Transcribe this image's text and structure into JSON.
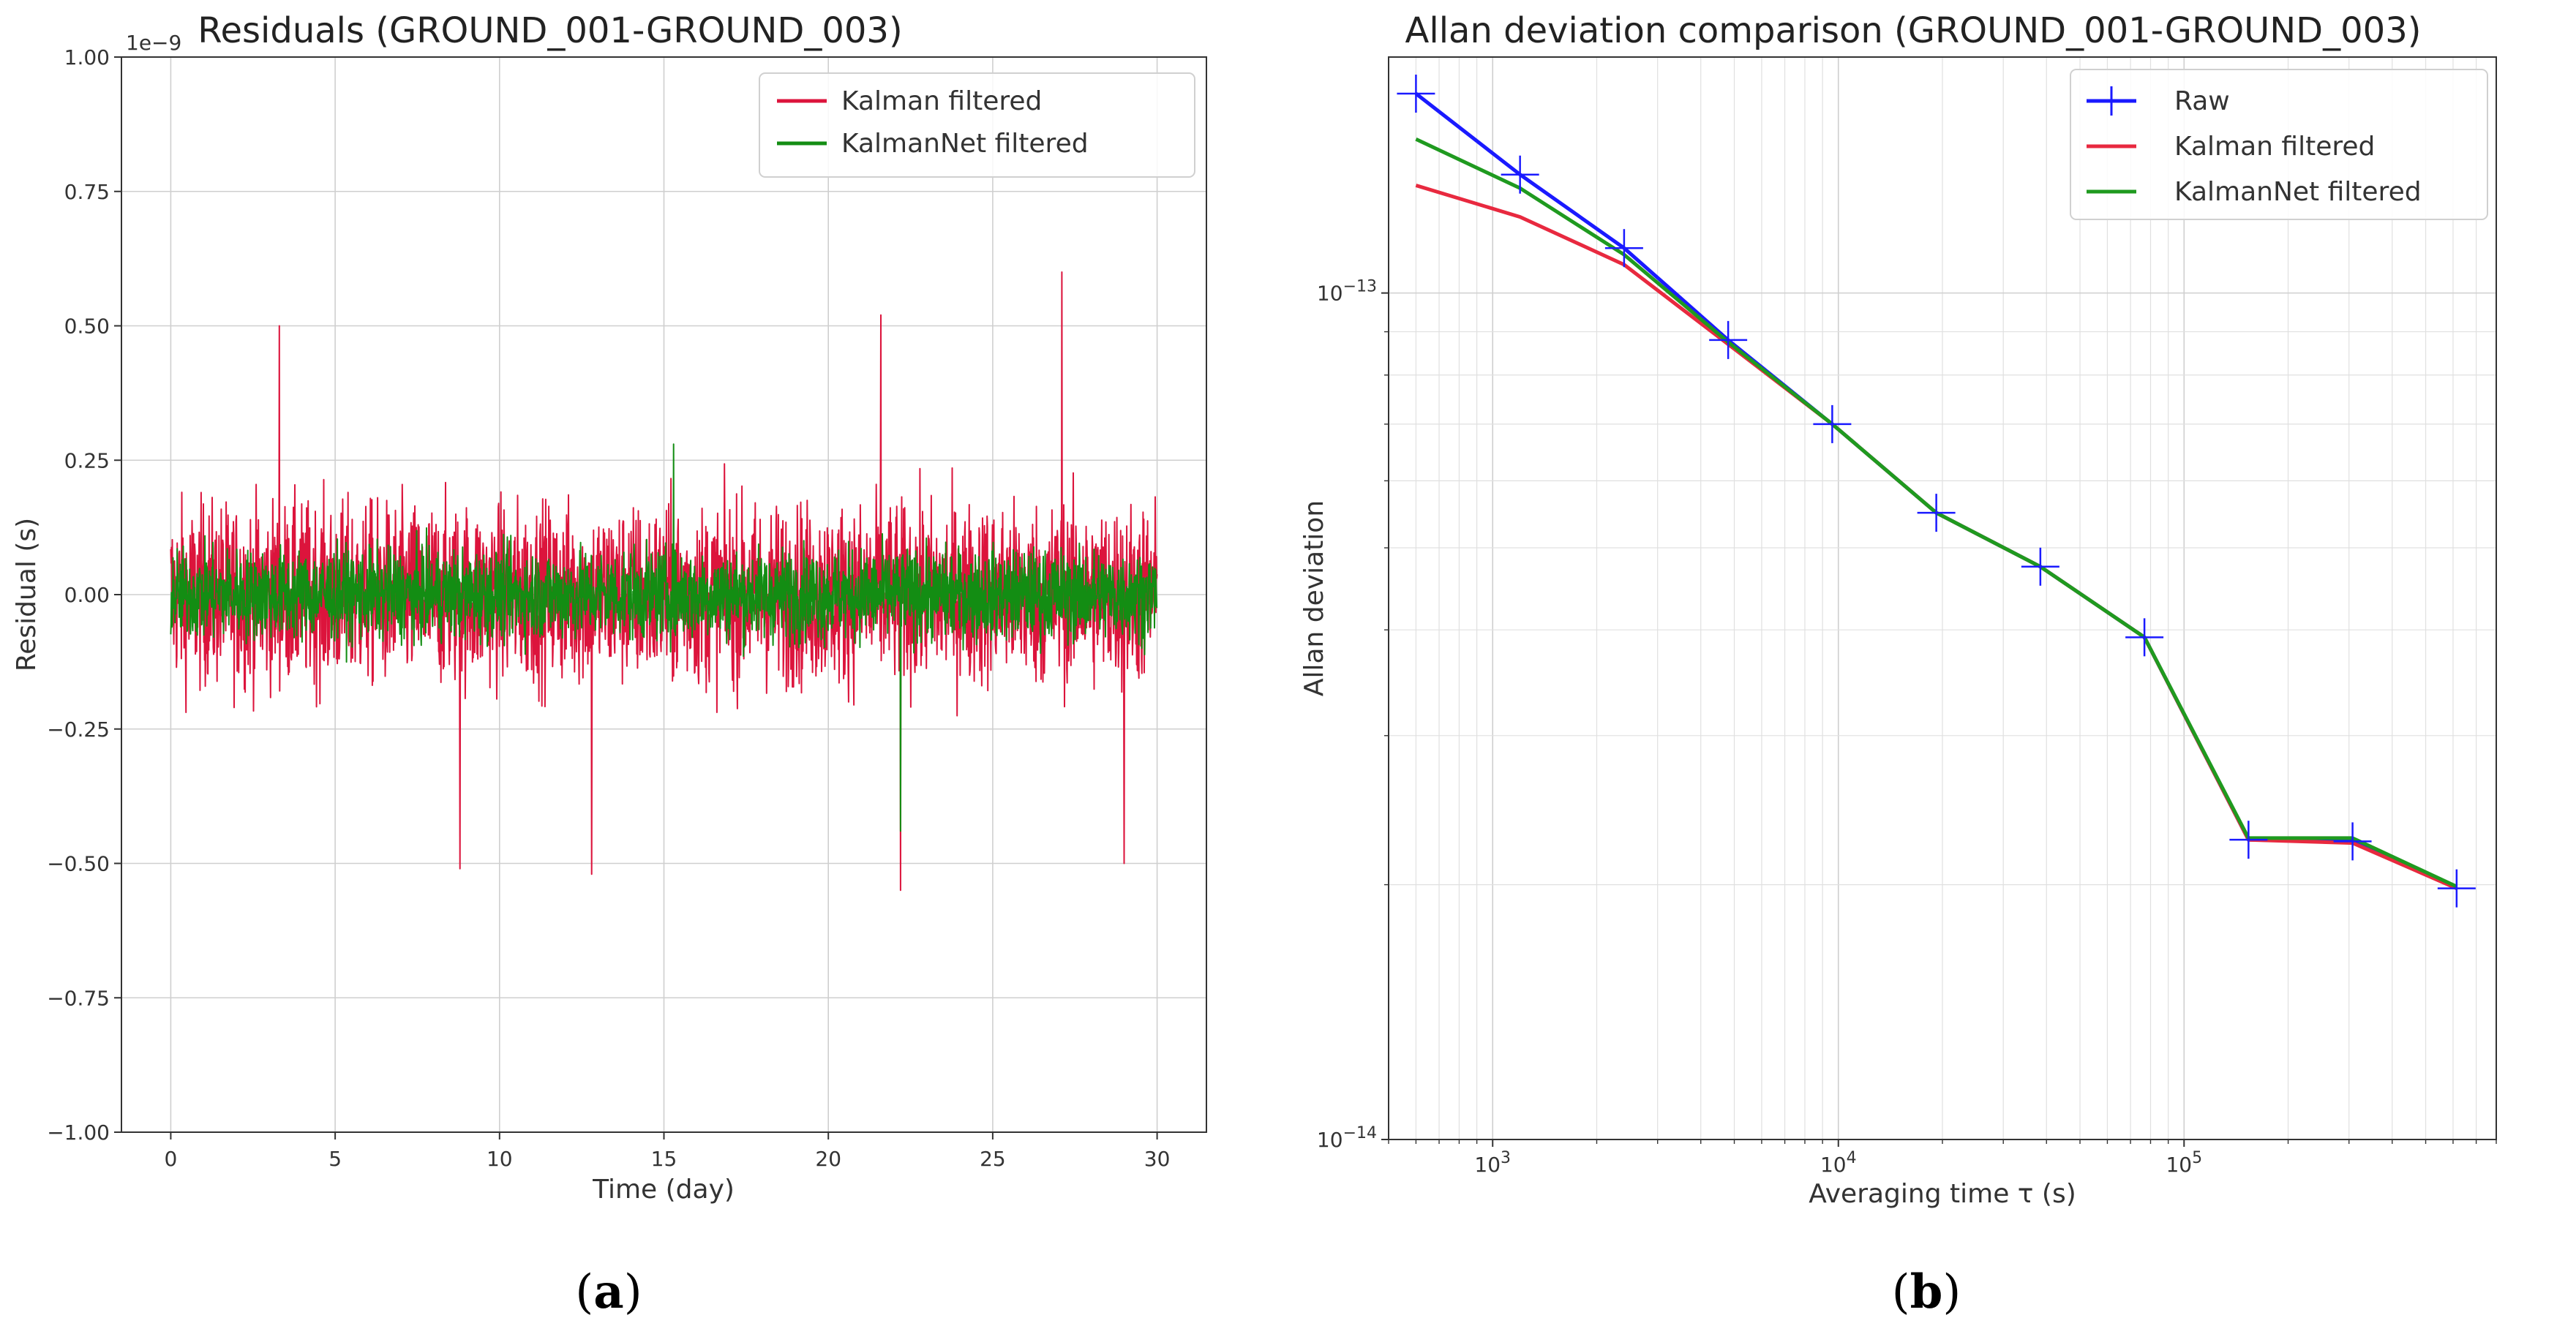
{
  "chart_data": [
    {
      "type": "line",
      "panel_label": "a",
      "title": "Residuals (GROUND_001-GROUND_003)",
      "xlabel": "Time (day)",
      "ylabel": "Residual (s)",
      "y_scale_label": "1e−9",
      "xlim": [
        -1.5,
        31.5
      ],
      "ylim": [
        -1.0,
        1.0
      ],
      "x_ticks": [
        0,
        5,
        10,
        15,
        20,
        25,
        30
      ],
      "x_tick_labels": [
        "0",
        "5",
        "10",
        "15",
        "20",
        "25",
        "30"
      ],
      "y_ticks": [
        -1.0,
        -0.75,
        -0.5,
        -0.25,
        0.0,
        0.25,
        0.5,
        0.75,
        1.0
      ],
      "y_tick_labels": [
        "−1.00",
        "−0.75",
        "−0.50",
        "−0.25",
        "0.00",
        "0.25",
        "0.50",
        "0.75",
        "1.00"
      ],
      "grid": true,
      "legend_position": "top-right",
      "x_range": [
        0,
        30
      ],
      "series": [
        {
          "name": "Kalman filtered",
          "color": "#dc143c",
          "typical_amplitude": [
            -0.3,
            0.3
          ],
          "peaks": [
            {
              "x": 3.3,
              "y": 0.5
            },
            {
              "x": 27.1,
              "y": 0.6
            },
            {
              "x": 21.6,
              "y": 0.52
            },
            {
              "x": 22.2,
              "y": -0.55
            },
            {
              "x": 8.8,
              "y": -0.51
            },
            {
              "x": 12.8,
              "y": -0.52
            },
            {
              "x": 29.0,
              "y": -0.5
            }
          ]
        },
        {
          "name": "KalmanNet filtered",
          "color": "#138d13",
          "typical_amplitude": [
            -0.15,
            0.15
          ],
          "peaks": [
            {
              "x": 22.2,
              "y": -0.44
            },
            {
              "x": 15.3,
              "y": 0.28
            }
          ]
        }
      ]
    },
    {
      "type": "line",
      "panel_label": "b",
      "title": "Allan deviation comparison (GROUND_001-GROUND_003)",
      "xlabel": "Averaging time τ (s)",
      "ylabel": "Allan deviation",
      "x_scale": "log",
      "y_scale": "log",
      "xlim": [
        500,
        800000
      ],
      "ylim": [
        1e-14,
        1.9e-13
      ],
      "x_major_tick_labels": [
        {
          "value": 1000,
          "base": "10",
          "exp": "3"
        },
        {
          "value": 10000,
          "base": "10",
          "exp": "4"
        },
        {
          "value": 100000,
          "base": "10",
          "exp": "5"
        }
      ],
      "y_major_tick_labels": [
        {
          "value": 1e-13,
          "base": "10",
          "exp": "−13"
        },
        {
          "value": 1e-14,
          "base": "10",
          "exp": "−14"
        }
      ],
      "grid": true,
      "legend_position": "top-right",
      "x": [
        600,
        1200,
        2400,
        4800,
        9600,
        19200,
        38400,
        76800,
        153600,
        307200,
        614400
      ],
      "series": [
        {
          "name": "Raw",
          "color": "#1a1aff",
          "marker": "+",
          "values": [
            1.72e-13,
            1.38e-13,
            1.13e-13,
            8.8e-14,
            7e-14,
            5.5e-14,
            4.75e-14,
            3.92e-14,
            2.26e-14,
            2.25e-14,
            1.98e-14
          ]
        },
        {
          "name": "Kalman filtered",
          "color": "#e8293f",
          "marker": "",
          "values": [
            1.34e-13,
            1.23e-13,
            1.08e-13,
            8.7e-14,
            7e-14,
            5.5e-14,
            4.75e-14,
            3.92e-14,
            2.26e-14,
            2.24e-14,
            1.98e-14
          ]
        },
        {
          "name": "KalmanNet filtered",
          "color": "#1f9a1f",
          "marker": "",
          "values": [
            1.52e-13,
            1.33e-13,
            1.11e-13,
            8.75e-14,
            7e-14,
            5.5e-14,
            4.75e-14,
            3.92e-14,
            2.27e-14,
            2.27e-14,
            1.99e-14
          ]
        }
      ]
    }
  ]
}
